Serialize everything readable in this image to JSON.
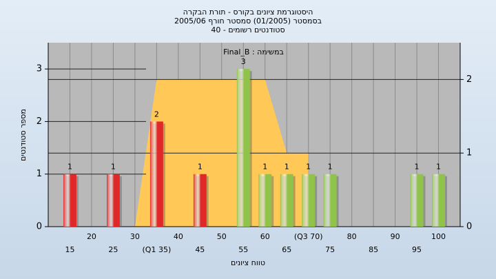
{
  "chart_data": {
    "type": "bar",
    "title": "היסטוגרמת ציונים בקורס - תורת הבקרה",
    "subtitle": "בסמסטר  (01/2005)  סמסטר חורף 2005/06",
    "subtitle2": "סטודנטים רשומים - 40",
    "annotation": "במשימה : Final_B",
    "x_label": "טווח ציונים",
    "y_label": "מספר סטודנטים",
    "x": [
      15,
      25,
      35,
      45,
      55,
      60,
      65,
      70,
      75,
      95,
      100
    ],
    "values": [
      1,
      1,
      2,
      1,
      3,
      1,
      1,
      1,
      1,
      1,
      1
    ],
    "colors": [
      "#e02828",
      "#e02828",
      "#e02828",
      "#e02828",
      "#8fc34a",
      "#8fc34a",
      "#8fc34a",
      "#8fc34a",
      "#8fc34a",
      "#8fc34a",
      "#8fc34a"
    ],
    "area": {
      "x": [
        30,
        35,
        60,
        65,
        70
      ],
      "values": [
        0,
        2,
        2,
        1,
        1
      ],
      "axis": "y2",
      "color": "#ffc857"
    },
    "xlim": [
      10,
      105
    ],
    "xticks": [
      15,
      20,
      25,
      30,
      {
        "value": 35,
        "label": "(Q1 35)"
      },
      40,
      45,
      50,
      55,
      60,
      65,
      {
        "value": 70,
        "label": "(Q3 70)"
      },
      75,
      80,
      85,
      90,
      95,
      100
    ],
    "ylim": [
      0,
      3.5
    ],
    "yticks": [
      0,
      1,
      2,
      3
    ],
    "y2lim": [
      0,
      2.5
    ],
    "y2ticks": [
      0,
      1,
      2
    ],
    "grid": true
  }
}
